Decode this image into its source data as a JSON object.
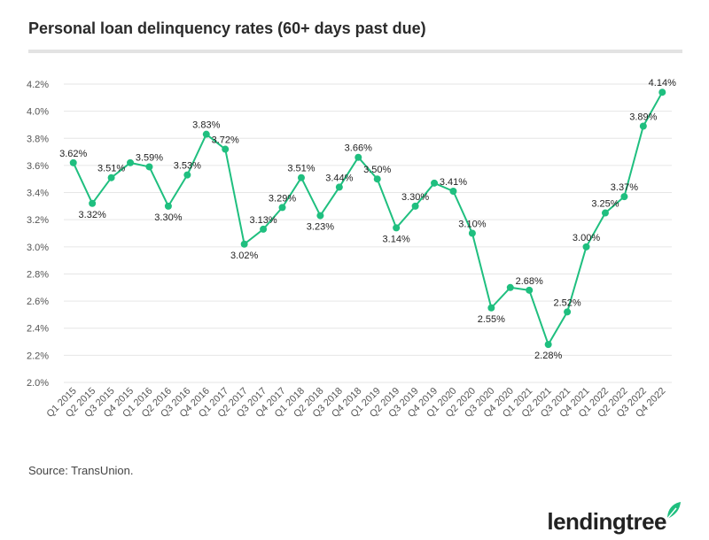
{
  "header": {
    "title": "Personal loan delinquency rates (60+ days past due)"
  },
  "footer": {
    "source": "Source: TransUnion.",
    "brand": "lendingtree"
  },
  "colors": {
    "line": "#1fbf7f",
    "grid": "#e6e6e6",
    "label": "#222222",
    "tick": "#555555"
  },
  "chart_data": {
    "type": "line",
    "title": "Personal loan delinquency rates (60+ days past due)",
    "xlabel": "",
    "ylabel": "",
    "ylim": [
      2.0,
      4.2
    ],
    "yticks": [
      2.0,
      2.2,
      2.4,
      2.6,
      2.8,
      3.0,
      3.2,
      3.4,
      3.6,
      3.8,
      4.0,
      4.2
    ],
    "ytick_labels": [
      "2.0%",
      "2.2%",
      "2.4%",
      "2.6%",
      "2.8%",
      "3.0%",
      "3.2%",
      "3.4%",
      "3.6%",
      "3.8%",
      "4.0%",
      "4.2%"
    ],
    "grid": true,
    "categories": [
      "Q1 2015",
      "Q2 2015",
      "Q3 2015",
      "Q4 2015",
      "Q1 2016",
      "Q2 2016",
      "Q3 2016",
      "Q4 2016",
      "Q1 2017",
      "Q2 2017",
      "Q3 2017",
      "Q4 2017",
      "Q1 2018",
      "Q2 2018",
      "Q3 2018",
      "Q4 2018",
      "Q1 2019",
      "Q2 2019",
      "Q3 2019",
      "Q4 2019",
      "Q1 2020",
      "Q2 2020",
      "Q3 2020",
      "Q4 2020",
      "Q1 2021",
      "Q2 2021",
      "Q3 2021",
      "Q4 2021",
      "Q1 2022",
      "Q2 2022",
      "Q3 2022",
      "Q4 2022"
    ],
    "series": [
      {
        "name": "Delinquency rate",
        "values": [
          3.62,
          3.32,
          3.51,
          3.62,
          3.59,
          3.3,
          3.53,
          3.83,
          3.72,
          3.02,
          3.13,
          3.29,
          3.51,
          3.23,
          3.44,
          3.66,
          3.5,
          3.14,
          3.3,
          3.47,
          3.41,
          3.1,
          2.55,
          2.7,
          2.68,
          2.28,
          2.52,
          3.0,
          3.25,
          3.37,
          3.89,
          4.14
        ],
        "data_labels": [
          "3.62%",
          "3.32%",
          "3.51%",
          "",
          "3.59%",
          "3.30%",
          "3.53%",
          "3.83%",
          "3.72%",
          "3.02%",
          "3.13%",
          "3.29%",
          "3.51%",
          "3.23%",
          "3.44%",
          "3.66%",
          "3.50%",
          "3.14%",
          "3.30%",
          "",
          "3.41%",
          "3.10%",
          "2.55%",
          "",
          "2.68%",
          "2.28%",
          "2.52%",
          "3.00%",
          "3.25%",
          "3.37%",
          "3.89%",
          "4.14%"
        ]
      }
    ]
  }
}
